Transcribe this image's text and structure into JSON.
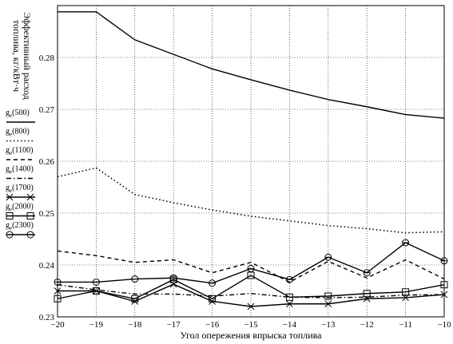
{
  "chart_data": {
    "type": "line",
    "xlabel": "Угол опережения впрыска топлива",
    "ylabel": [
      "Эффективный расход",
      "топлива, кг/кВт·ч"
    ],
    "xlim": [
      -20,
      -10
    ],
    "ylim": [
      0.23,
      0.29
    ],
    "grid": true,
    "legend": "left",
    "x": [
      -20,
      -19,
      -18,
      -17,
      -16,
      -15,
      -14,
      -13,
      -12,
      -11,
      -10
    ],
    "x_ticks": [
      "−20",
      "−19",
      "−18",
      "−17",
      "−16",
      "−15",
      "−14",
      "−13",
      "−12",
      "−11",
      "−10"
    ],
    "y_ticks": [
      {
        "v": 0.23,
        "label": "0.23"
      },
      {
        "v": 0.24,
        "label": "0.24"
      },
      {
        "v": 0.25,
        "label": "0.25"
      },
      {
        "v": 0.26,
        "label": "0.26"
      },
      {
        "v": 0.27,
        "label": "0.27"
      },
      {
        "v": 0.28,
        "label": "0.28"
      }
    ],
    "series": [
      {
        "name": "ge(500)",
        "style": "solid",
        "marker": "none",
        "values": [
          0.2888,
          0.2888,
          0.2834,
          0.2806,
          0.2778,
          0.2757,
          0.2737,
          0.2719,
          0.2705,
          0.269,
          0.2683
        ]
      },
      {
        "name": "ge(800)",
        "style": "dotted",
        "marker": "none",
        "values": [
          0.257,
          0.2587,
          0.2536,
          0.252,
          0.2506,
          0.2494,
          0.2485,
          0.2476,
          0.247,
          0.2462,
          0.2464
        ]
      },
      {
        "name": "ge(1100)",
        "style": "dashed",
        "marker": "none",
        "values": [
          0.2427,
          0.2418,
          0.2405,
          0.241,
          0.2385,
          0.2405,
          0.2367,
          0.2407,
          0.2375,
          0.241,
          0.2373
        ]
      },
      {
        "name": "ge(1400)",
        "style": "dashdot",
        "marker": "none",
        "values": [
          0.2362,
          0.2352,
          0.2344,
          0.2344,
          0.234,
          0.2345,
          0.2338,
          0.2337,
          0.2338,
          0.2342,
          0.2343
        ]
      },
      {
        "name": "ge(1700)",
        "style": "solid",
        "marker": "x",
        "values": [
          0.235,
          0.235,
          0.233,
          0.2363,
          0.233,
          0.232,
          0.2325,
          0.2325,
          0.2335,
          0.2337,
          0.2343
        ]
      },
      {
        "name": "ge(2000)",
        "style": "solid",
        "marker": "square",
        "values": [
          0.2335,
          0.235,
          0.2335,
          0.2372,
          0.2335,
          0.238,
          0.2338,
          0.234,
          0.2345,
          0.2348,
          0.2362
        ]
      },
      {
        "name": "ge(2300)",
        "style": "solid",
        "marker": "circle",
        "values": [
          0.2367,
          0.2367,
          0.2373,
          0.2375,
          0.2365,
          0.2393,
          0.2372,
          0.2415,
          0.2385,
          0.2443,
          0.2408
        ]
      }
    ]
  }
}
